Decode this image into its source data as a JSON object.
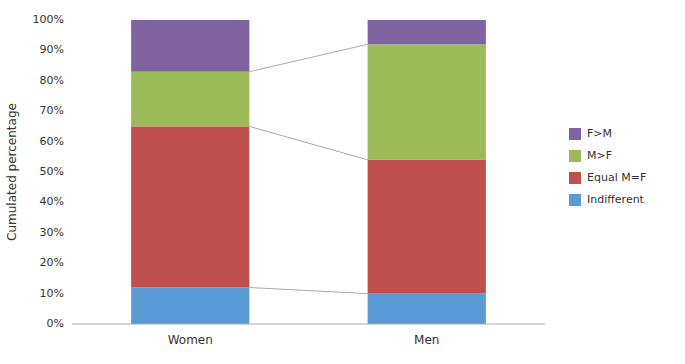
{
  "chart_data": {
    "type": "bar",
    "stacked": true,
    "categories": [
      "Women",
      "Men"
    ],
    "series": [
      {
        "name": "Indifferent",
        "color": "#5b9bd5",
        "values": [
          12,
          10
        ]
      },
      {
        "name": "Equal M=F",
        "color": "#c0504d",
        "values": [
          53,
          44
        ]
      },
      {
        "name": "M>F",
        "color": "#9bbb59",
        "values": [
          18,
          38
        ]
      },
      {
        "name": "F>M",
        "color": "#8064a2",
        "values": [
          17,
          8
        ]
      }
    ],
    "y_label": "Cumulated percentage",
    "ylim": [
      0,
      100
    ],
    "yticks": [
      {
        "value": 0,
        "label": "0%"
      },
      {
        "value": 10,
        "label": "10%"
      },
      {
        "value": 20,
        "label": "20%"
      },
      {
        "value": 30,
        "label": "30%"
      },
      {
        "value": 40,
        "label": "40%"
      },
      {
        "value": 50,
        "label": "50%"
      },
      {
        "value": 60,
        "label": "60%"
      },
      {
        "value": 70,
        "label": "70%"
      },
      {
        "value": 80,
        "label": "80%"
      },
      {
        "value": 90,
        "label": "90%"
      },
      {
        "value": 100,
        "label": "100%"
      }
    ],
    "grid": false,
    "legend": "right"
  }
}
